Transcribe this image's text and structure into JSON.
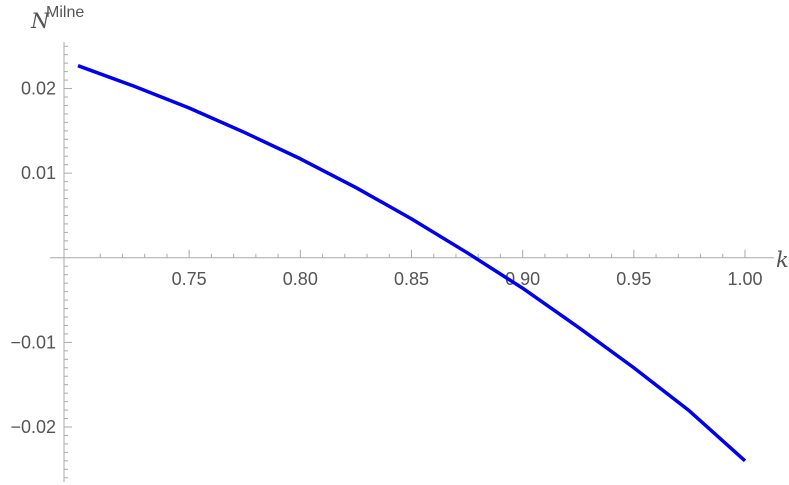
{
  "chart_data": {
    "type": "line",
    "xlabel": "k",
    "ylabel": {
      "base": "N",
      "superscript": "Milne"
    },
    "xlim": [
      0.7,
      1.0
    ],
    "ylim": [
      -0.0265,
      0.0255
    ],
    "x_ticks": [
      {
        "value": 0.75,
        "label": "0.75"
      },
      {
        "value": 0.8,
        "label": "0.80"
      },
      {
        "value": 0.85,
        "label": "0.85"
      },
      {
        "value": 0.9,
        "label": "0.90"
      },
      {
        "value": 0.95,
        "label": "0.95"
      },
      {
        "value": 1.0,
        "label": "1.00"
      }
    ],
    "y_ticks": [
      {
        "value": 0.02,
        "label": "0.02"
      },
      {
        "value": 0.01,
        "label": "0.01"
      },
      {
        "value": -0.01,
        "label": "−0.01"
      },
      {
        "value": -0.02,
        "label": "−0.02"
      }
    ],
    "grid": false,
    "series": [
      {
        "color": "#0000ee",
        "x": [
          0.7,
          0.725,
          0.75,
          0.775,
          0.8,
          0.825,
          0.85,
          0.875,
          0.9,
          0.925,
          0.95,
          0.975,
          1.0
        ],
        "y": [
          0.0227,
          0.0203,
          0.0177,
          0.0148,
          0.0117,
          0.0083,
          0.0046,
          0.0006,
          -0.0036,
          -0.0082,
          -0.013,
          -0.0181,
          -0.024
        ]
      }
    ]
  }
}
